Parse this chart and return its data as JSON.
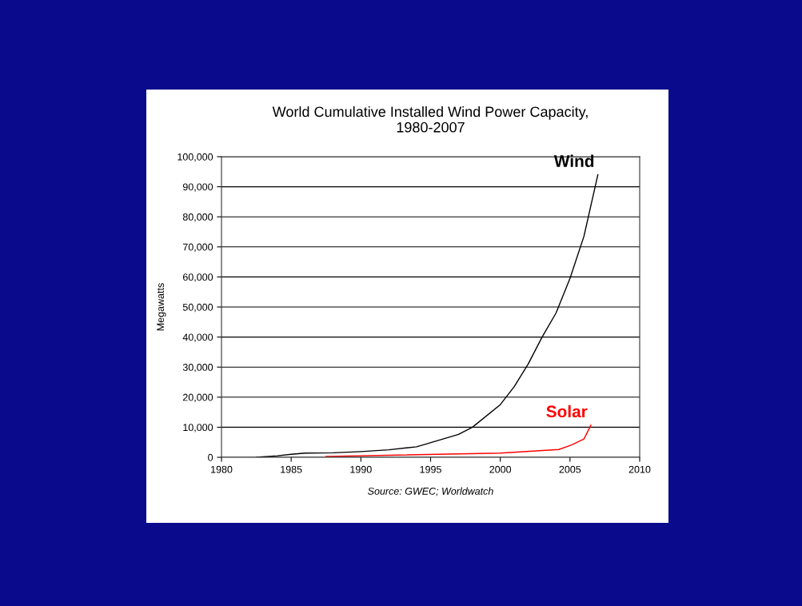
{
  "chart_data": {
    "type": "line",
    "title": "World Cumulative Installed Wind Power Capacity,\n1980-2007",
    "ylabel": "Megawatts",
    "annotations": [
      "Source: GWEC; Worldwatch"
    ],
    "series": [
      {
        "name": "Wind",
        "color": "#000000",
        "x": [
          1982.5,
          1984,
          1985,
          1986,
          1988,
          1990,
          1992,
          1994,
          1997,
          1998,
          2000,
          2001,
          2002,
          2003,
          2004,
          2005,
          2006,
          2007
        ],
        "values": [
          0,
          500,
          1000,
          1400,
          1500,
          1900,
          2500,
          3500,
          7600,
          10000,
          17500,
          23500,
          31000,
          40000,
          48000,
          59500,
          73500,
          94000
        ]
      },
      {
        "name": "Solar",
        "color": "#ff0000",
        "x": [
          1987.5,
          2000,
          2004.2,
          2005.1,
          2006,
          2006.5
        ],
        "values": [
          300,
          1400,
          2600,
          4100,
          6100,
          10700
        ]
      }
    ],
    "xlim": [
      1980,
      2010
    ],
    "xticks": [
      1980,
      1985,
      1990,
      1995,
      2000,
      2005,
      2010
    ],
    "ylim": [
      0,
      100000
    ],
    "yticks": [
      {
        "value": 0,
        "label": "0"
      },
      {
        "value": 10000,
        "label": "10,000"
      },
      {
        "value": 20000,
        "label": "20,000"
      },
      {
        "value": 30000,
        "label": "30,000"
      },
      {
        "value": 40000,
        "label": "40,000"
      },
      {
        "value": 50000,
        "label": "50,000"
      },
      {
        "value": 60000,
        "label": "60,000"
      },
      {
        "value": 70000,
        "label": "70,000"
      },
      {
        "value": 80000,
        "label": "80,000"
      },
      {
        "value": 90000,
        "label": "90,000"
      },
      {
        "value": 100000,
        "label": "100,000"
      }
    ],
    "grid": "y",
    "marker": "none",
    "line_style": "solid"
  }
}
